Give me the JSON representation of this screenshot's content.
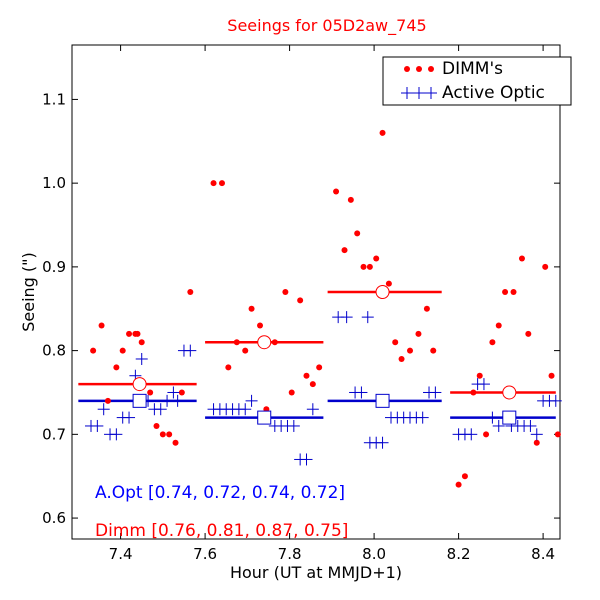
{
  "chart_data": {
    "type": "scatter",
    "title": "Seeings for 05D2aw_745",
    "xlabel": "Hour (UT at MMJD+1)",
    "ylabel": "Seeing (\")",
    "xlim": [
      7.285,
      8.44
    ],
    "ylim": [
      0.575,
      1.165
    ],
    "xticks": [
      7.4,
      7.6,
      7.8,
      8.0,
      8.2,
      8.4
    ],
    "xtick_labels": [
      "7.4",
      "7.6",
      "7.8",
      "8.0",
      "8.2",
      "8.4"
    ],
    "yticks": [
      0.6,
      0.7,
      0.8,
      0.9,
      1.0,
      1.1
    ],
    "ytick_labels": [
      "0.6",
      "0.7",
      "0.8",
      "0.9",
      "1.0",
      "1.1"
    ],
    "legend": {
      "position": "top-right",
      "entries": [
        {
          "label": "DIMM's",
          "color": "#ff0000",
          "marker": "dot"
        },
        {
          "label": "Active Optic",
          "color": "#0000cc",
          "marker": "plus"
        }
      ]
    },
    "series": [
      {
        "name": "DIMM's",
        "color": "#ff0000",
        "marker": "dot",
        "points": [
          [
            7.335,
            0.8
          ],
          [
            7.355,
            0.83
          ],
          [
            7.37,
            0.74
          ],
          [
            7.39,
            0.78
          ],
          [
            7.405,
            0.8
          ],
          [
            7.42,
            0.82
          ],
          [
            7.435,
            0.82
          ],
          [
            7.44,
            0.82
          ],
          [
            7.45,
            0.81
          ],
          [
            7.47,
            0.75
          ],
          [
            7.485,
            0.71
          ],
          [
            7.5,
            0.7
          ],
          [
            7.515,
            0.7
          ],
          [
            7.53,
            0.69
          ],
          [
            7.545,
            0.75
          ],
          [
            7.565,
            0.87
          ],
          [
            7.62,
            1.0
          ],
          [
            7.64,
            1.0
          ],
          [
            7.655,
            0.78
          ],
          [
            7.675,
            0.81
          ],
          [
            7.695,
            0.8
          ],
          [
            7.71,
            0.85
          ],
          [
            7.73,
            0.83
          ],
          [
            7.745,
            0.73
          ],
          [
            7.765,
            0.81
          ],
          [
            7.79,
            0.87
          ],
          [
            7.805,
            0.75
          ],
          [
            7.825,
            0.86
          ],
          [
            7.84,
            0.77
          ],
          [
            7.855,
            0.76
          ],
          [
            7.87,
            0.78
          ],
          [
            7.91,
            0.99
          ],
          [
            7.93,
            0.92
          ],
          [
            7.945,
            0.98
          ],
          [
            7.96,
            0.94
          ],
          [
            7.975,
            0.9
          ],
          [
            7.99,
            0.9
          ],
          [
            8.005,
            0.91
          ],
          [
            8.02,
            1.06
          ],
          [
            8.035,
            0.88
          ],
          [
            8.05,
            0.81
          ],
          [
            8.065,
            0.79
          ],
          [
            8.085,
            0.8
          ],
          [
            8.105,
            0.82
          ],
          [
            8.125,
            0.85
          ],
          [
            8.14,
            0.8
          ],
          [
            8.2,
            0.64
          ],
          [
            8.215,
            0.65
          ],
          [
            8.235,
            0.75
          ],
          [
            8.25,
            0.77
          ],
          [
            8.265,
            0.7
          ],
          [
            8.28,
            0.81
          ],
          [
            8.295,
            0.83
          ],
          [
            8.31,
            0.87
          ],
          [
            8.33,
            0.87
          ],
          [
            8.35,
            0.91
          ],
          [
            8.365,
            0.82
          ],
          [
            8.385,
            0.69
          ],
          [
            8.405,
            0.9
          ],
          [
            8.42,
            0.77
          ],
          [
            8.435,
            0.7
          ]
        ]
      },
      {
        "name": "Active Optic",
        "color": "#0000cc",
        "marker": "plus",
        "points": [
          [
            7.33,
            0.71
          ],
          [
            7.345,
            0.71
          ],
          [
            7.36,
            0.73
          ],
          [
            7.375,
            0.7
          ],
          [
            7.39,
            0.7
          ],
          [
            7.405,
            0.72
          ],
          [
            7.42,
            0.72
          ],
          [
            7.435,
            0.77
          ],
          [
            7.45,
            0.79
          ],
          [
            7.465,
            0.74
          ],
          [
            7.48,
            0.73
          ],
          [
            7.495,
            0.73
          ],
          [
            7.51,
            0.74
          ],
          [
            7.525,
            0.75
          ],
          [
            7.535,
            0.74
          ],
          [
            7.55,
            0.8
          ],
          [
            7.565,
            0.8
          ],
          [
            7.62,
            0.73
          ],
          [
            7.635,
            0.73
          ],
          [
            7.65,
            0.73
          ],
          [
            7.665,
            0.73
          ],
          [
            7.68,
            0.73
          ],
          [
            7.695,
            0.73
          ],
          [
            7.71,
            0.74
          ],
          [
            7.725,
            0.72
          ],
          [
            7.745,
            0.72
          ],
          [
            7.765,
            0.71
          ],
          [
            7.78,
            0.71
          ],
          [
            7.795,
            0.71
          ],
          [
            7.81,
            0.71
          ],
          [
            7.825,
            0.67
          ],
          [
            7.84,
            0.67
          ],
          [
            7.855,
            0.73
          ],
          [
            7.915,
            0.84
          ],
          [
            7.935,
            0.84
          ],
          [
            7.955,
            0.75
          ],
          [
            7.97,
            0.75
          ],
          [
            7.985,
            0.84
          ],
          [
            7.99,
            0.69
          ],
          [
            8.005,
            0.69
          ],
          [
            8.02,
            0.69
          ],
          [
            8.04,
            0.72
          ],
          [
            8.055,
            0.72
          ],
          [
            8.07,
            0.72
          ],
          [
            8.085,
            0.72
          ],
          [
            8.1,
            0.72
          ],
          [
            8.115,
            0.72
          ],
          [
            8.13,
            0.75
          ],
          [
            8.145,
            0.75
          ],
          [
            8.2,
            0.7
          ],
          [
            8.215,
            0.7
          ],
          [
            8.23,
            0.7
          ],
          [
            8.245,
            0.76
          ],
          [
            8.26,
            0.76
          ],
          [
            8.28,
            0.72
          ],
          [
            8.295,
            0.71
          ],
          [
            8.31,
            0.72
          ],
          [
            8.325,
            0.71
          ],
          [
            8.34,
            0.71
          ],
          [
            8.355,
            0.71
          ],
          [
            8.37,
            0.71
          ],
          [
            8.385,
            0.7
          ],
          [
            8.4,
            0.74
          ],
          [
            8.415,
            0.74
          ],
          [
            8.43,
            0.74
          ]
        ]
      }
    ],
    "bins": [
      {
        "x_start": 7.3,
        "x_end": 7.58,
        "x_center": 7.445,
        "dimm_median": 0.76,
        "aopt_median": 0.74
      },
      {
        "x_start": 7.6,
        "x_end": 7.88,
        "x_center": 7.74,
        "dimm_median": 0.81,
        "aopt_median": 0.72
      },
      {
        "x_start": 7.89,
        "x_end": 8.16,
        "x_center": 8.02,
        "dimm_median": 0.87,
        "aopt_median": 0.74
      },
      {
        "x_start": 8.18,
        "x_end": 8.43,
        "x_center": 8.32,
        "dimm_median": 0.75,
        "aopt_median": 0.72
      }
    ],
    "annotations": [
      {
        "text": "A.Opt [0.74, 0.72, 0.74, 0.72]",
        "color": "#0000ff"
      },
      {
        "text": "Dimm [0.76, 0.81, 0.87, 0.75]",
        "color": "#ff0000"
      }
    ]
  }
}
